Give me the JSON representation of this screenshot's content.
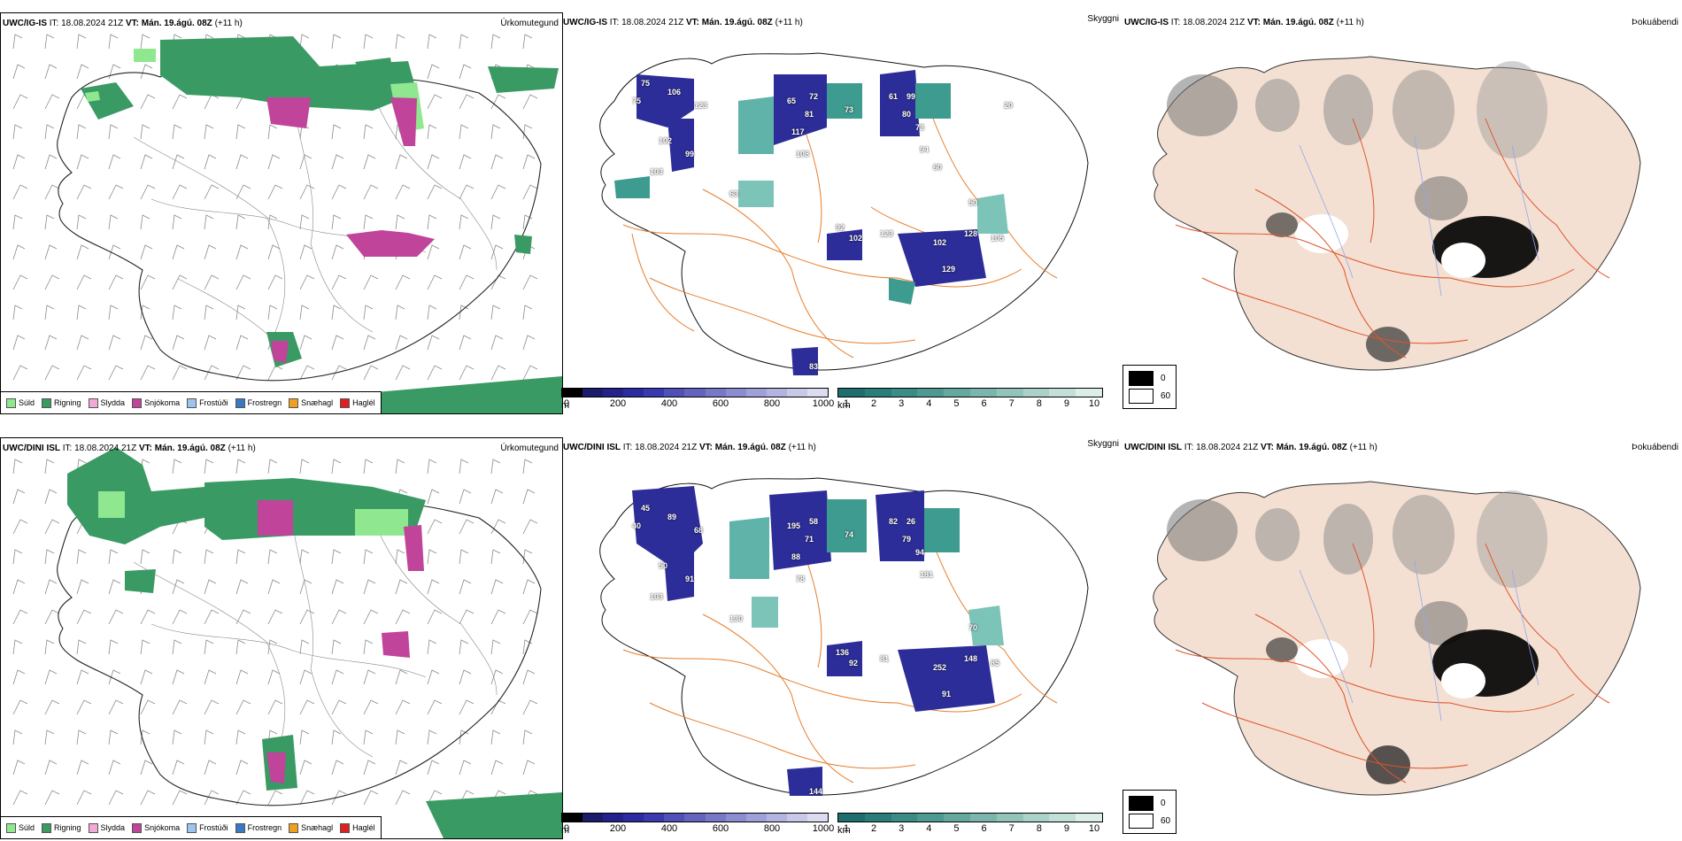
{
  "rows": [
    {
      "model": "UWC/IG-IS",
      "it_label": "IT:",
      "it_value": "18.08.2024 21Z",
      "vt_label": "VT:",
      "vt_value": "Mán. 19.ágú. 08Z",
      "lead": "(+11 h)",
      "annotations": [
        "75",
        "75",
        "106",
        "123",
        "102",
        "99",
        "103",
        "65",
        "72",
        "81",
        "117",
        "108",
        "73",
        "61",
        "99",
        "80",
        "73",
        "94",
        "102",
        "123",
        "92",
        "102",
        "128",
        "105",
        "129",
        "83",
        "63",
        "50",
        "60",
        "20"
      ]
    },
    {
      "model": "UWC/DINI ISL",
      "it_label": "IT:",
      "it_value": "18.08.2024 21Z",
      "vt_label": "VT:",
      "vt_value": "Mán. 19.ágú. 08Z",
      "lead": "(+11 h)",
      "annotations": [
        "45",
        "40",
        "89",
        "68",
        "50",
        "91",
        "103",
        "195",
        "58",
        "71",
        "88",
        "78",
        "74",
        "82",
        "26",
        "79",
        "94",
        "181",
        "92",
        "81",
        "136",
        "252",
        "148",
        "85",
        "91",
        "144",
        "130",
        "70"
      ]
    }
  ],
  "panel_titles": {
    "precip": "Úrkomutegund",
    "cloud_base": "Skyggni",
    "cloud_cover": "Þokuábendi"
  },
  "precip_legend": [
    {
      "label": "Súld",
      "color": "#8fe88f"
    },
    {
      "label": "Rigning",
      "color": "#3a9a63"
    },
    {
      "label": "Slydda",
      "color": "#f2a9d6"
    },
    {
      "label": "Snjókoma",
      "color": "#c0449a"
    },
    {
      "label": "Frostúði",
      "color": "#9cc4ee"
    },
    {
      "label": "Frostregn",
      "color": "#3a78c0"
    },
    {
      "label": "Snæhagl",
      "color": "#f0a020"
    },
    {
      "label": "Haglél",
      "color": "#e02020"
    }
  ],
  "height_bar": {
    "unit": "m",
    "ticks": [
      "0",
      "200",
      "400",
      "600",
      "800",
      "1000"
    ],
    "colors": [
      "#000000",
      "#1b1b6b",
      "#22228a",
      "#2c2ca0",
      "#3a3ab0",
      "#5050b8",
      "#6464c0",
      "#7878c8",
      "#8c8cd0",
      "#a0a0d8",
      "#b4b4e0",
      "#c8c8e8",
      "#dcdcf0"
    ]
  },
  "vis_bar": {
    "unit": "km",
    "ticks": [
      "1",
      "2",
      "3",
      "4",
      "5",
      "6",
      "7",
      "8",
      "9",
      "10"
    ],
    "colors": [
      "#1e6e6e",
      "#2a7e7a",
      "#3a8c86",
      "#4e9a92",
      "#64a89e",
      "#7ab6ac",
      "#92c4ba",
      "#aad2c8",
      "#c2e0d8",
      "#dceee8"
    ]
  },
  "cloud_legend": [
    {
      "label": "0",
      "color": "#000000"
    },
    {
      "label": "60",
      "color": "#ffffff"
    }
  ]
}
